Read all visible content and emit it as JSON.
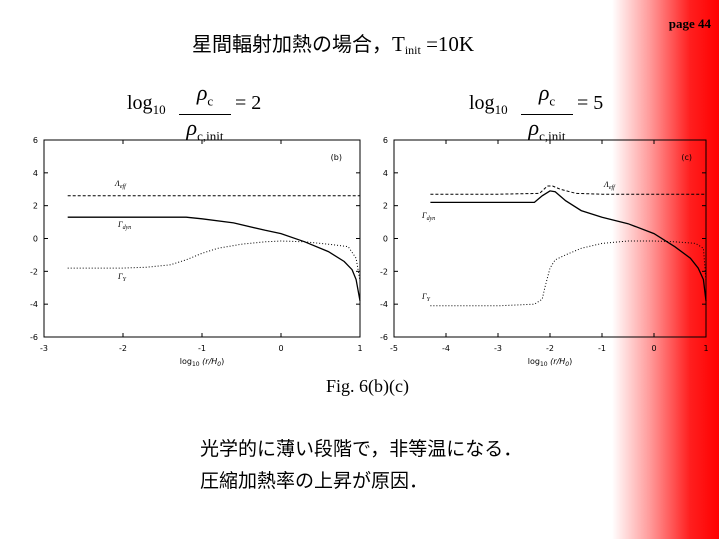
{
  "page": {
    "number": "page 44"
  },
  "title": {
    "prefix": "星間輻射加熱の場合，",
    "T": "T",
    "sub": "init",
    "rest": " =10K"
  },
  "equations": [
    {
      "log": "log",
      "base": "10",
      "num": "ρ",
      "num_sub": "c",
      "den": "ρ",
      "den_sub": "c,init",
      "rhs": "= 2"
    },
    {
      "log": "log",
      "base": "10",
      "num": "ρ",
      "num_sub": "c",
      "den": "ρ",
      "den_sub": "c,init",
      "rhs": "= 5"
    }
  ],
  "caption": "Fig. 6(b)(c)",
  "notes": [
    "光学的に薄い段階で，非等温になる．",
    "圧縮加熱率の上昇が原因．"
  ],
  "chart_data": [
    {
      "type": "line",
      "panel_label": "(b)",
      "xlim": [
        -3,
        1
      ],
      "ylim": [
        -6,
        6
      ],
      "x_ticks": [
        "-3",
        "-2",
        "-1",
        "0",
        "1"
      ],
      "y_ticks": [
        "6",
        "4",
        "2",
        "0",
        "-2",
        "-4",
        "-6"
      ],
      "xlabel_prefix": "log",
      "xlabel_base": "10",
      "xlabel_arg": " (r/H",
      "xlabel_arg_sub": "0",
      "xlabel_close": ")",
      "series": [
        {
          "name": "Λ",
          "name_sub": "eff",
          "style": "dashed",
          "x": [
            -2.7,
            -2.0,
            -1.0,
            0.0,
            0.5,
            0.9,
            0.95,
            1.0
          ],
          "y": [
            2.6,
            2.6,
            2.6,
            2.6,
            2.6,
            2.6,
            2.6,
            2.6
          ]
        },
        {
          "name": "Γ",
          "name_sub": "dyn",
          "style": "solid",
          "x": [
            -2.7,
            -2.0,
            -1.2,
            -1.0,
            -0.6,
            -0.2,
            0.0,
            0.3,
            0.6,
            0.8,
            0.9,
            0.95,
            1.0
          ],
          "y": [
            1.3,
            1.3,
            1.3,
            1.2,
            0.95,
            0.5,
            0.3,
            -0.2,
            -0.8,
            -1.4,
            -1.9,
            -2.5,
            -3.8
          ]
        },
        {
          "name": "Γ",
          "name_sub": "Y",
          "style": "dotted",
          "x": [
            -2.7,
            -2.0,
            -1.7,
            -1.4,
            -1.2,
            -1.0,
            -0.8,
            -0.5,
            -0.2,
            0.0,
            0.3,
            0.6,
            0.85,
            0.95,
            1.0
          ],
          "y": [
            -1.8,
            -1.8,
            -1.75,
            -1.6,
            -1.3,
            -0.9,
            -0.6,
            -0.35,
            -0.2,
            -0.15,
            -0.2,
            -0.35,
            -0.5,
            -1.2,
            -2.6
          ]
        }
      ]
    },
    {
      "type": "line",
      "panel_label": "(c)",
      "xlim": [
        -5,
        1
      ],
      "ylim": [
        -6,
        6
      ],
      "x_ticks": [
        "-5",
        "-4",
        "-3",
        "-2",
        "-1",
        "0",
        "1"
      ],
      "y_ticks": [
        "6",
        "4",
        "2",
        "0",
        "-2",
        "-4",
        "-6"
      ],
      "xlabel_prefix": "log",
      "xlabel_base": "10",
      "xlabel_arg": " (r/H",
      "xlabel_arg_sub": "0",
      "xlabel_close": ")",
      "series": [
        {
          "name": "Λ",
          "name_sub": "eff",
          "style": "dashed",
          "x": [
            -4.3,
            -3.0,
            -2.2,
            -2.05,
            -1.95,
            -1.8,
            -1.5,
            -1.0,
            0.0,
            0.5,
            0.9,
            1.0
          ],
          "y": [
            2.7,
            2.7,
            2.75,
            3.2,
            3.2,
            3.0,
            2.75,
            2.7,
            2.7,
            2.7,
            2.7,
            2.7
          ]
        },
        {
          "name": "Γ",
          "name_sub": "dyn",
          "style": "solid",
          "x": [
            -4.3,
            -3.0,
            -2.3,
            -2.15,
            -2.0,
            -1.9,
            -1.7,
            -1.4,
            -1.0,
            -0.5,
            0.0,
            0.4,
            0.7,
            0.85,
            0.95,
            1.0
          ],
          "y": [
            2.2,
            2.2,
            2.2,
            2.6,
            2.9,
            2.85,
            2.3,
            1.7,
            1.3,
            0.9,
            0.3,
            -0.5,
            -1.2,
            -1.8,
            -2.5,
            -3.8
          ]
        },
        {
          "name": "Γ",
          "name_sub": "Y",
          "style": "dotted",
          "x": [
            -4.3,
            -3.0,
            -2.3,
            -2.15,
            -2.1,
            -2.0,
            -1.9,
            -1.7,
            -1.4,
            -1.0,
            -0.5,
            0.0,
            0.4,
            0.8,
            0.95,
            1.0
          ],
          "y": [
            -4.1,
            -4.1,
            -4.0,
            -3.7,
            -3.0,
            -1.8,
            -1.3,
            -1.0,
            -0.6,
            -0.3,
            -0.15,
            -0.15,
            -0.2,
            -0.3,
            -0.6,
            -2.6
          ]
        }
      ]
    }
  ]
}
